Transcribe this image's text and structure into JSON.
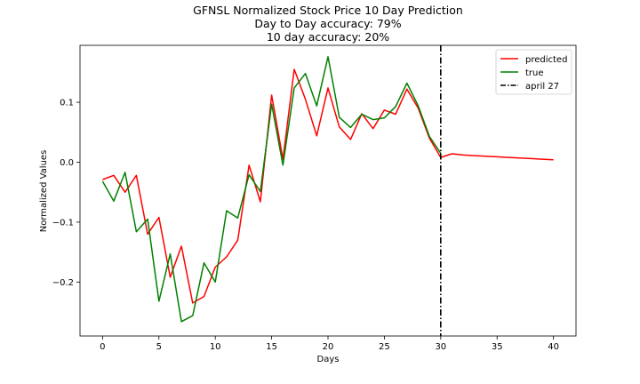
{
  "chart_data": {
    "type": "line",
    "title_lines": [
      "GFNSL Normalized Stock Price 10 Day Prediction",
      "Day to Day accuracy: 79%",
      "10 day accuracy: 20%"
    ],
    "xlabel": "Days",
    "ylabel": "Normalized Values",
    "xlim": [
      -2,
      42
    ],
    "ylim": [
      -0.29,
      0.195
    ],
    "xticks": [
      0,
      5,
      10,
      15,
      20,
      25,
      30,
      35,
      40
    ],
    "xtick_labels": [
      "0",
      "5",
      "10",
      "15",
      "20",
      "25",
      "30",
      "35",
      "40"
    ],
    "yticks": [
      -0.2,
      -0.1,
      0.0,
      0.1
    ],
    "ytick_labels": [
      "−0.2",
      "−0.1",
      "0.0",
      "0.1"
    ],
    "grid": false,
    "legend_placement": "top-right",
    "series": [
      {
        "name": "predicted",
        "color": "#ff0000",
        "x": [
          0,
          1,
          2,
          3,
          4,
          5,
          6,
          7,
          8,
          9,
          10,
          11,
          12,
          13,
          14,
          15,
          16,
          17,
          18,
          19,
          20,
          21,
          22,
          23,
          24,
          25,
          26,
          27,
          28,
          29,
          30,
          31,
          32,
          33,
          34,
          35,
          36,
          37,
          38,
          39,
          40
        ],
        "y": [
          -0.029,
          -0.022,
          -0.05,
          -0.022,
          -0.12,
          -0.092,
          -0.192,
          -0.14,
          -0.235,
          -0.224,
          -0.175,
          -0.158,
          -0.13,
          -0.005,
          -0.066,
          0.112,
          0.005,
          0.155,
          0.105,
          0.044,
          0.124,
          0.059,
          0.038,
          0.081,
          0.056,
          0.087,
          0.08,
          0.122,
          0.09,
          0.04,
          0.008,
          0.014,
          0.012,
          0.011,
          0.01,
          0.009,
          0.008,
          0.007,
          0.006,
          0.005,
          0.004
        ]
      },
      {
        "name": "true",
        "color": "#008000",
        "x": [
          0,
          1,
          2,
          3,
          4,
          5,
          6,
          7,
          8,
          9,
          10,
          11,
          12,
          13,
          14,
          15,
          16,
          17,
          18,
          19,
          20,
          21,
          22,
          23,
          24,
          25,
          26,
          27,
          28,
          29,
          30
        ],
        "y": [
          -0.032,
          -0.065,
          -0.017,
          -0.116,
          -0.095,
          -0.232,
          -0.153,
          -0.266,
          -0.256,
          -0.168,
          -0.2,
          -0.081,
          -0.093,
          -0.021,
          -0.049,
          0.097,
          -0.005,
          0.124,
          0.148,
          0.094,
          0.176,
          0.075,
          0.058,
          0.08,
          0.071,
          0.074,
          0.093,
          0.132,
          0.094,
          0.043,
          0.015
        ]
      }
    ],
    "vline": {
      "name": "april 27",
      "x": 30,
      "color": "#000000",
      "style": "dash-dot"
    }
  }
}
